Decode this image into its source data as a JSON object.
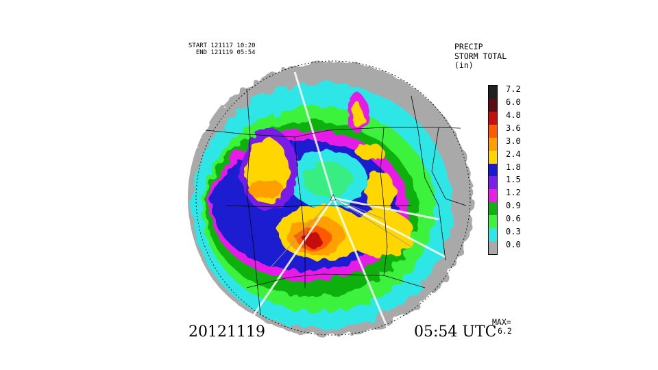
{
  "header": {
    "start_label": "START 121117 10:20",
    "end_label": "  END 121119 05:54"
  },
  "title": {
    "line1": "PRECIP",
    "line2": "STORM TOTAL",
    "line3": "(in)"
  },
  "legend": {
    "bins": [
      {
        "label": "7.2",
        "color": "#202020"
      },
      {
        "label": "6.0",
        "color": "#5a0d12"
      },
      {
        "label": "4.8",
        "color": "#c40f0f"
      },
      {
        "label": "3.6",
        "color": "#ff5a00"
      },
      {
        "label": "3.0",
        "color": "#ff9f00"
      },
      {
        "label": "2.4",
        "color": "#ffd600"
      },
      {
        "label": "1.8",
        "color": "#1a1ad0"
      },
      {
        "label": "1.5",
        "color": "#7a1ee8"
      },
      {
        "label": "1.2",
        "color": "#e61ee6"
      },
      {
        "label": "0.9",
        "color": "#10b010"
      },
      {
        "label": "0.6",
        "color": "#3ef23e"
      },
      {
        "label": "0.3",
        "color": "#2ee6e6"
      },
      {
        "label": "0.0",
        "color": "#a9a9a9"
      }
    ]
  },
  "footer": {
    "date": "20121119",
    "time": "05:54 UTC",
    "max_label": "MAX=",
    "max_value": "6.2"
  }
}
